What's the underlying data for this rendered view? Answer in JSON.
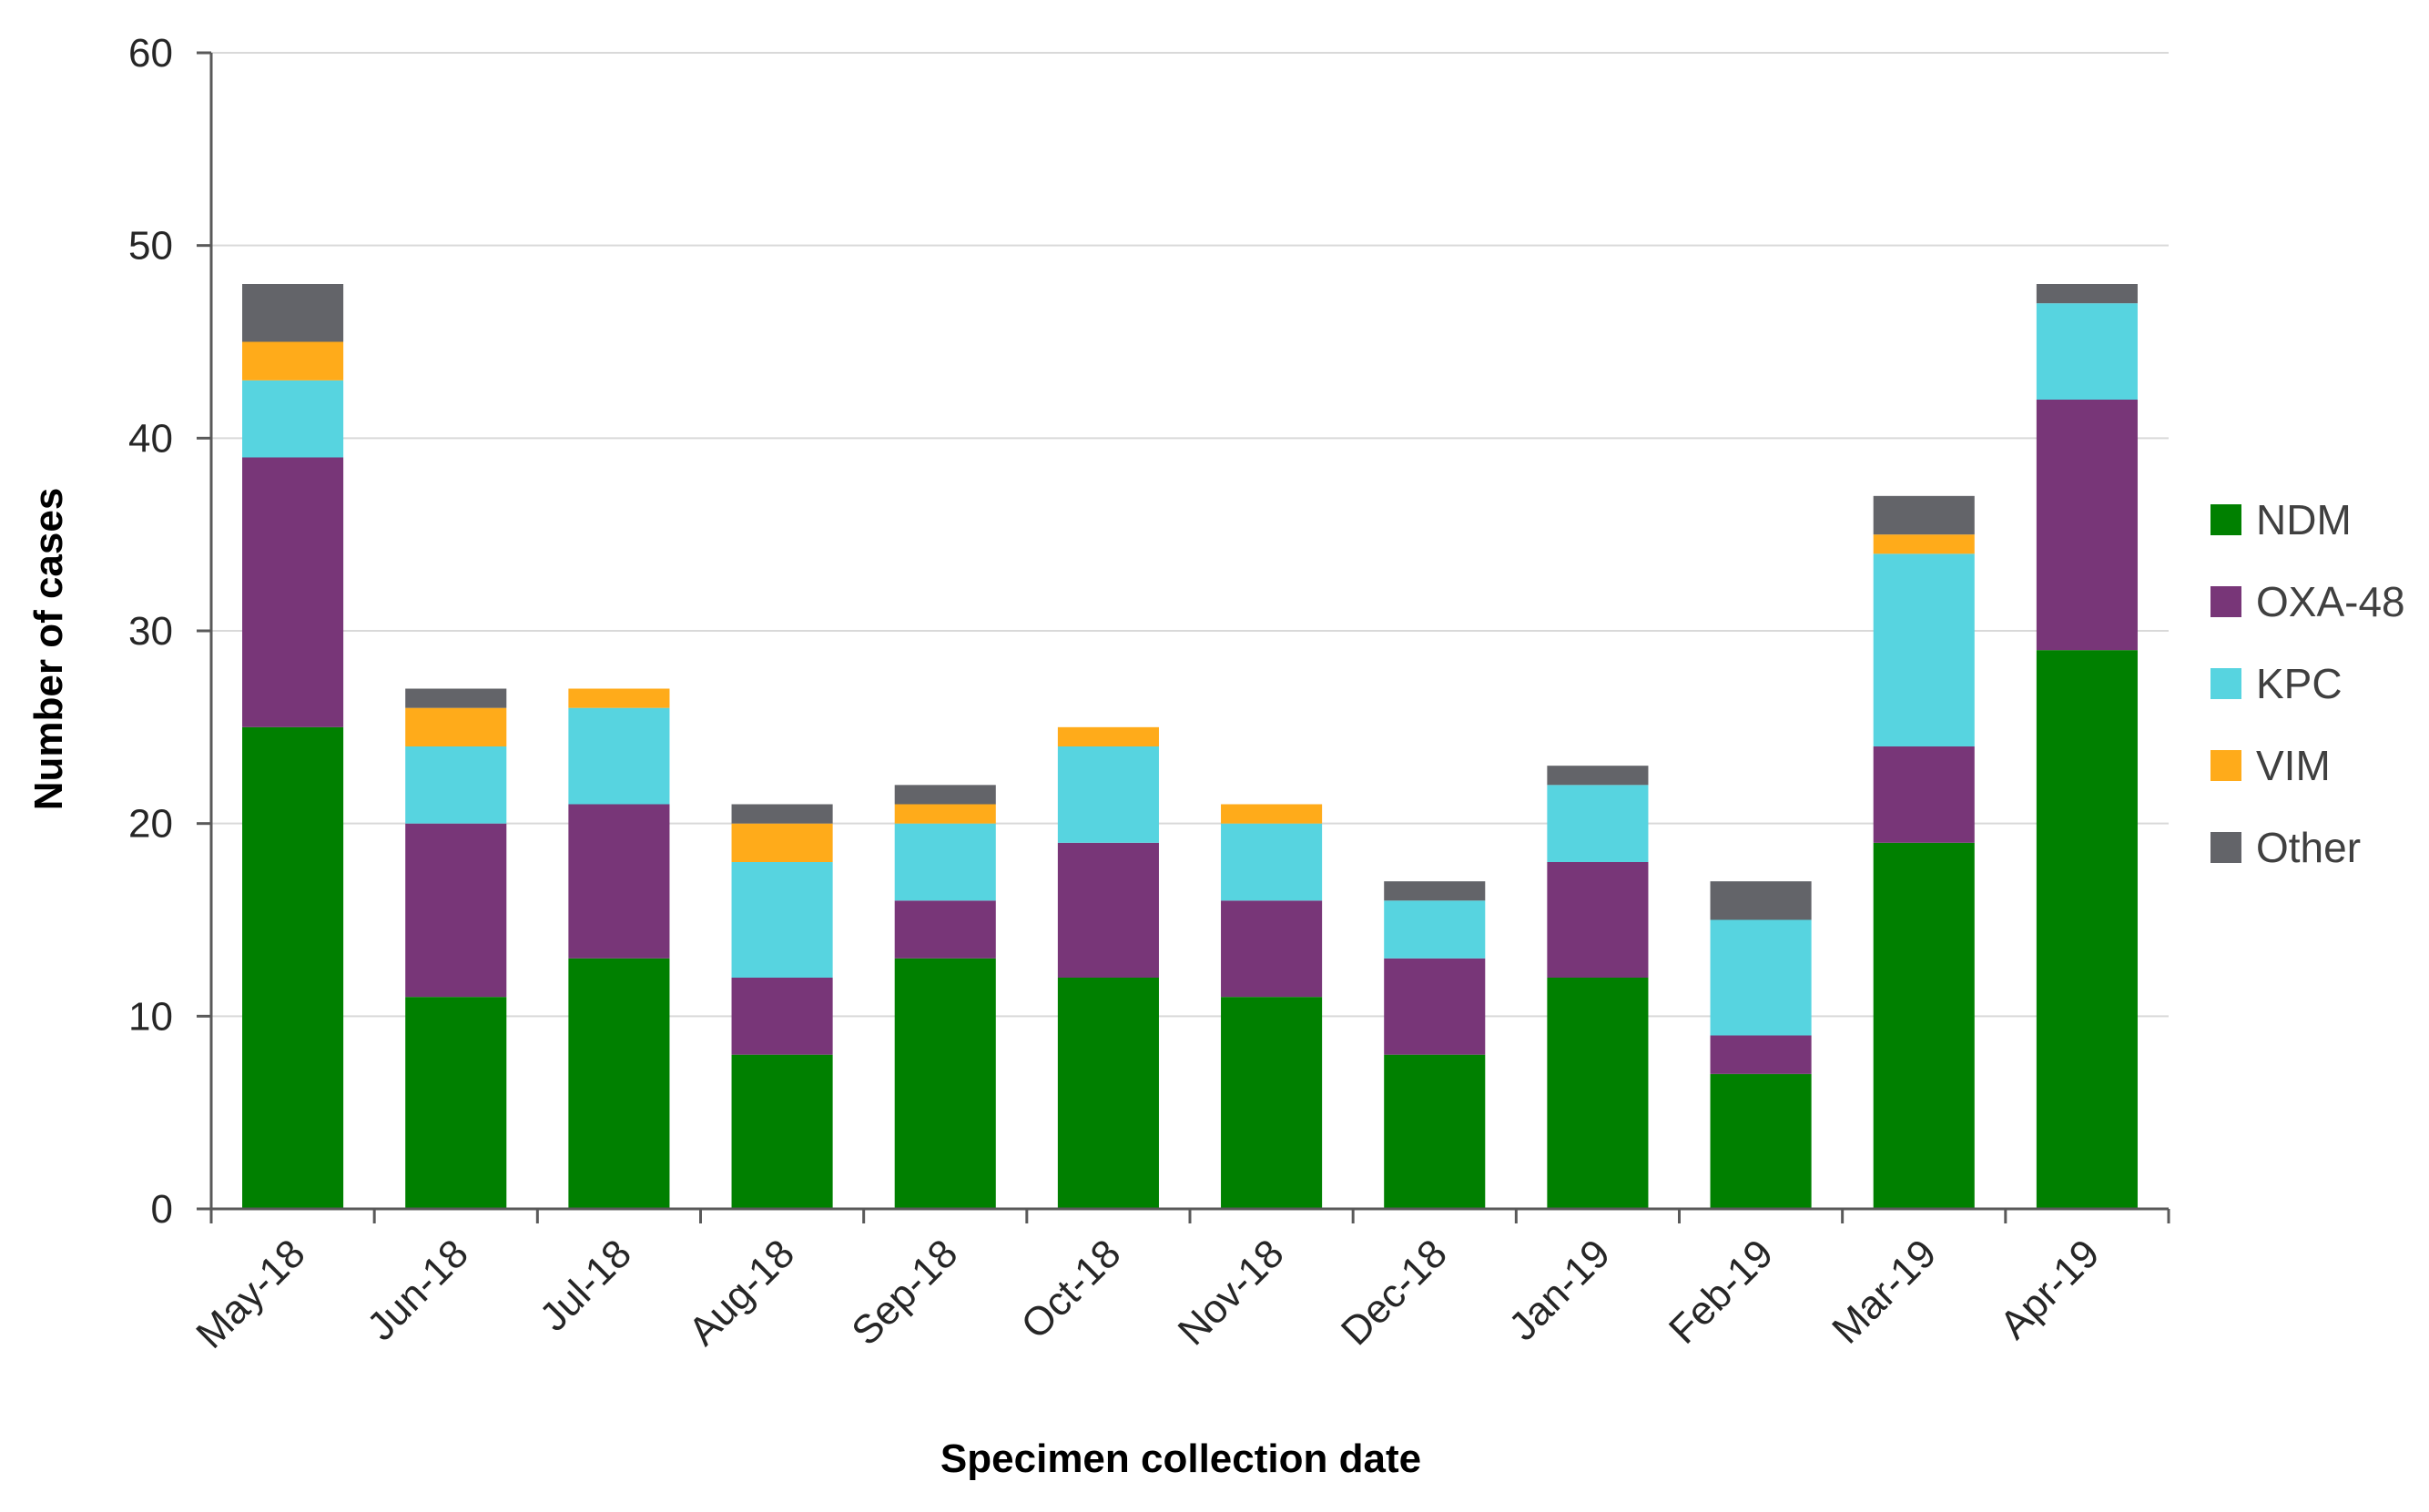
{
  "chart_data": {
    "type": "bar",
    "stacked": true,
    "title": "",
    "xlabel": "Specimen collection date",
    "ylabel": "Number of cases",
    "ylim": [
      0,
      60
    ],
    "yticks": [
      0,
      10,
      20,
      30,
      40,
      50,
      60
    ],
    "grid": true,
    "legend_position": "right",
    "categories": [
      "May-18",
      "Jun-18",
      "Jul-18",
      "Aug-18",
      "Sep-18",
      "Oct-18",
      "Nov-18",
      "Dec-18",
      "Jan-19",
      "Feb-19",
      "Mar-19",
      "Apr-19"
    ],
    "series": [
      {
        "name": "NDM",
        "color": "#008000",
        "values": [
          25,
          11,
          13,
          8,
          13,
          12,
          11,
          8,
          12,
          7,
          19,
          29
        ]
      },
      {
        "name": "OXA-48",
        "color": "#783678",
        "values": [
          14,
          9,
          8,
          4,
          3,
          7,
          5,
          5,
          6,
          2,
          5,
          13
        ]
      },
      {
        "name": "KPC",
        "color": "#57d4e0",
        "values": [
          4,
          4,
          5,
          6,
          4,
          5,
          4,
          3,
          4,
          6,
          10,
          5
        ]
      },
      {
        "name": "VIM",
        "color": "#ffab1a",
        "values": [
          2,
          2,
          1,
          2,
          1,
          1,
          1,
          0,
          0,
          0,
          1,
          0
        ]
      },
      {
        "name": "Other",
        "color": "#636469",
        "values": [
          3,
          1,
          0,
          1,
          1,
          0,
          0,
          1,
          1,
          2,
          2,
          1
        ]
      }
    ]
  }
}
